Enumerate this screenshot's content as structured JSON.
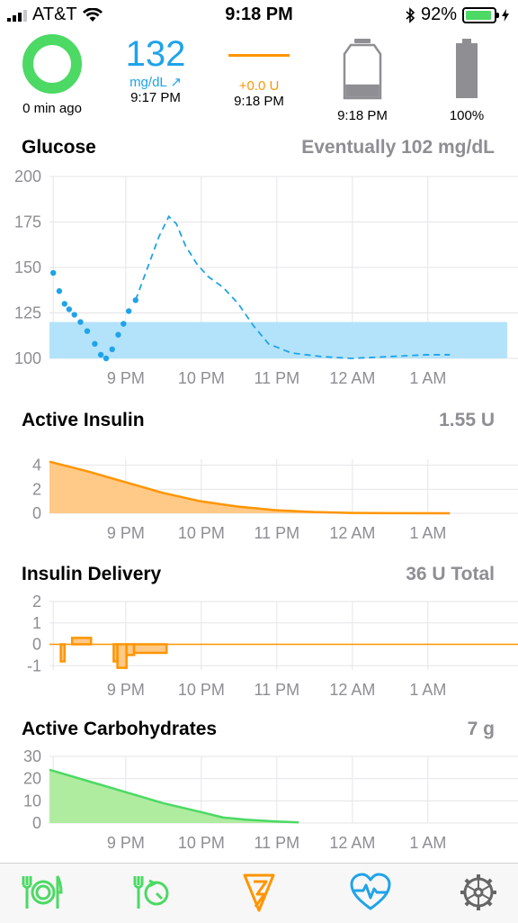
{
  "status_bar": {
    "carrier": "AT&T",
    "time": "9:18 PM",
    "battery_percent": "92%"
  },
  "hud": {
    "loop": {
      "caption": "0 min ago"
    },
    "glucose": {
      "value": "132",
      "unit": "mg/dL ↗",
      "time": "9:17 PM"
    },
    "temp_basal": {
      "value": "+0.0 U",
      "time": "9:18 PM"
    },
    "reservoir": {
      "time": "9:18 PM",
      "level": 0.3
    },
    "pump_battery": {
      "percent": "100%",
      "level": 1.0
    }
  },
  "sections": {
    "glucose": {
      "title": "Glucose",
      "summary": "Eventually 102 mg/dL"
    },
    "insulin": {
      "title": "Active Insulin",
      "summary": "1.55 U"
    },
    "delivery": {
      "title": "Insulin Delivery",
      "summary": "36 U Total"
    },
    "carbs": {
      "title": "Active Carbohydrates",
      "summary": "7 g"
    }
  },
  "colors": {
    "glucose": "#1fa3e9",
    "target_range": "#b3e3fa",
    "insulin": "#ff9500",
    "insulin_fill": "#ffc987",
    "carbs": "#4cd964",
    "carbs_fill": "#b0eca0",
    "loop": "#4cd964"
  },
  "x_ticks": [
    "9 PM",
    "10 PM",
    "11 PM",
    "12 AM",
    "1 AM"
  ],
  "chart_data": [
    {
      "type": "scatter",
      "name": "glucose",
      "y_ticks": [
        "200",
        "175",
        "150",
        "125",
        "100"
      ],
      "ylim": [
        100,
        200
      ],
      "target_range": [
        100,
        120
      ],
      "x_unit": "hours after 8 PM",
      "observed": [
        [
          0.05,
          147
        ],
        [
          0.13,
          137
        ],
        [
          0.2,
          130
        ],
        [
          0.26,
          127
        ],
        [
          0.33,
          124
        ],
        [
          0.41,
          120
        ],
        [
          0.5,
          115
        ],
        [
          0.6,
          108
        ],
        [
          0.68,
          102
        ],
        [
          0.75,
          100
        ],
        [
          0.83,
          105
        ],
        [
          0.91,
          113
        ],
        [
          0.98,
          119
        ],
        [
          1.05,
          126
        ],
        [
          1.14,
          132
        ]
      ],
      "predicted": [
        [
          1.14,
          132
        ],
        [
          1.3,
          150
        ],
        [
          1.45,
          167
        ],
        [
          1.58,
          178
        ],
        [
          1.68,
          174
        ],
        [
          1.8,
          162
        ],
        [
          1.95,
          152
        ],
        [
          2.1,
          145
        ],
        [
          2.3,
          139
        ],
        [
          2.5,
          130
        ],
        [
          2.7,
          118
        ],
        [
          2.9,
          108
        ],
        [
          3.2,
          103
        ],
        [
          3.6,
          101
        ],
        [
          4.0,
          100
        ],
        [
          4.5,
          101
        ],
        [
          5.0,
          102
        ],
        [
          5.3,
          102
        ]
      ]
    },
    {
      "type": "area",
      "name": "active_insulin",
      "y_ticks": [
        "4",
        "2",
        "0"
      ],
      "ylim": [
        0,
        4.5
      ],
      "points": [
        [
          0,
          4.3
        ],
        [
          0.5,
          3.5
        ],
        [
          1.0,
          2.6
        ],
        [
          1.5,
          1.7
        ],
        [
          2.0,
          1.0
        ],
        [
          2.5,
          0.55
        ],
        [
          3.0,
          0.25
        ],
        [
          3.5,
          0.1
        ],
        [
          4.0,
          0.03
        ],
        [
          4.5,
          0.01
        ],
        [
          5.3,
          0
        ]
      ]
    },
    {
      "type": "bar",
      "name": "insulin_delivery",
      "y_ticks": [
        "2",
        "1",
        "0",
        "-1"
      ],
      "ylim": [
        -1.2,
        2
      ],
      "segments": [
        [
          0.15,
          0.2,
          -0.8
        ],
        [
          0.2,
          0.3,
          0
        ],
        [
          0.3,
          0.55,
          0.3
        ],
        [
          0.55,
          0.85,
          0
        ],
        [
          0.85,
          0.9,
          -0.8
        ],
        [
          0.9,
          1.02,
          -1.1
        ],
        [
          1.02,
          1.12,
          -0.5
        ],
        [
          1.12,
          1.55,
          -0.4
        ]
      ]
    },
    {
      "type": "area",
      "name": "active_carbohydrates",
      "y_ticks": [
        "30",
        "20",
        "10",
        "0"
      ],
      "ylim": [
        0,
        30
      ],
      "points": [
        [
          0,
          24
        ],
        [
          0.5,
          19
        ],
        [
          1.0,
          14
        ],
        [
          1.5,
          9
        ],
        [
          2.0,
          5
        ],
        [
          2.3,
          2.5
        ],
        [
          2.6,
          1.5
        ],
        [
          3.0,
          0.7
        ],
        [
          3.3,
          0.3
        ]
      ]
    }
  ]
}
